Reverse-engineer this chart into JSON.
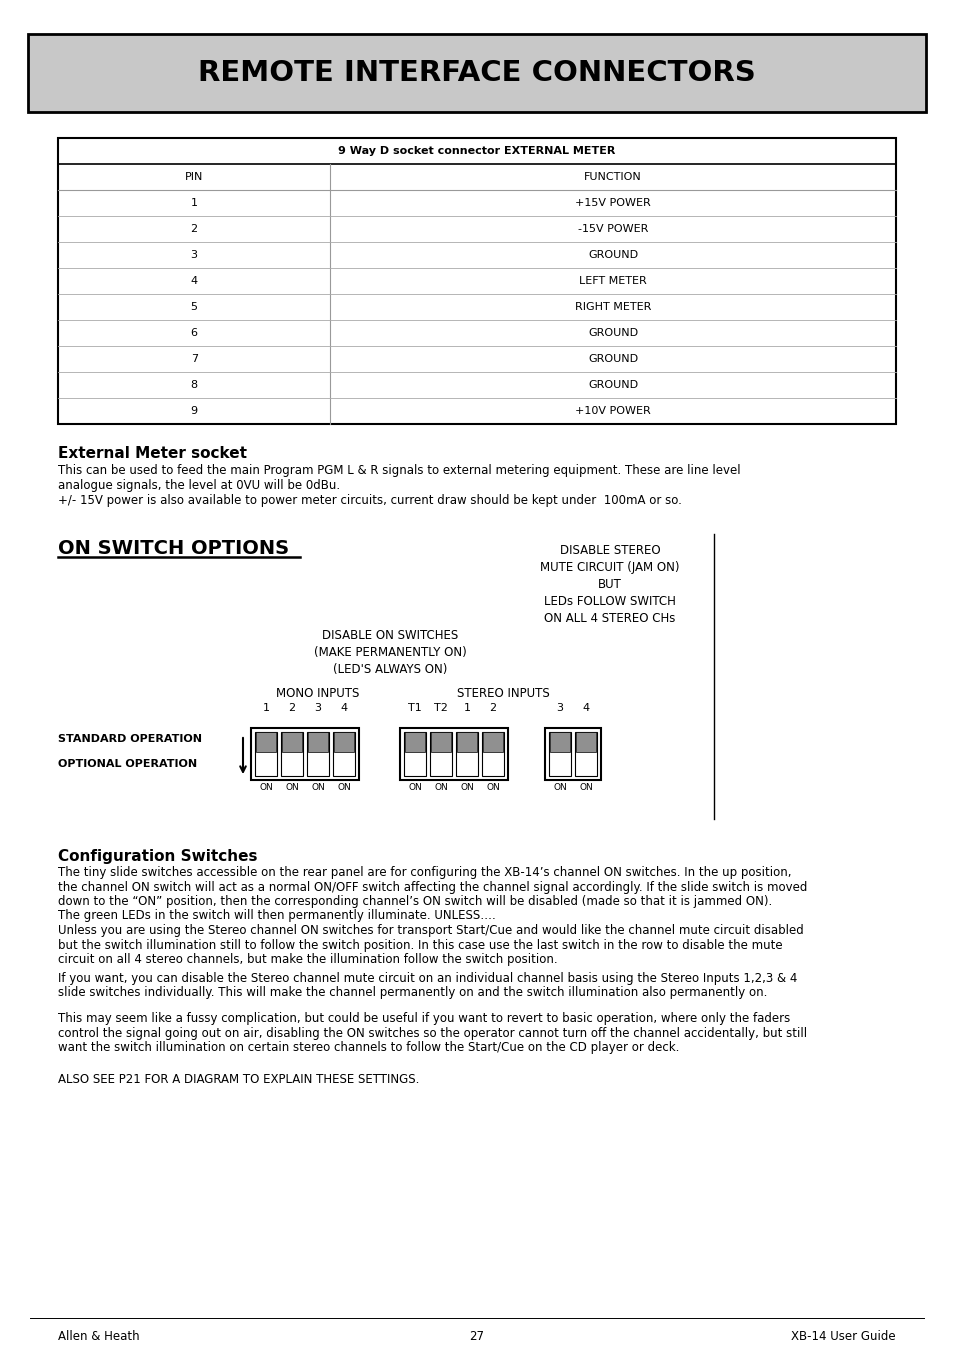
{
  "title": "REMOTE INTERFACE CONNECTORS",
  "title_bg": "#c0c0c0",
  "table_title": "9 Way D socket connector EXTERNAL METER",
  "table_headers": [
    "PIN",
    "FUNCTION"
  ],
  "table_rows": [
    [
      "1",
      "+15V POWER"
    ],
    [
      "2",
      "-15V POWER"
    ],
    [
      "3",
      "GROUND"
    ],
    [
      "4",
      "LEFT METER"
    ],
    [
      "5",
      "RIGHT METER"
    ],
    [
      "6",
      "GROUND"
    ],
    [
      "7",
      "GROUND"
    ],
    [
      "8",
      "GROUND"
    ],
    [
      "9",
      "+10V POWER"
    ]
  ],
  "ext_meter_title": "External Meter socket",
  "ext_meter_text1": "This can be used to feed the main Program PGM L & R signals to external metering equipment. These are line level",
  "ext_meter_text2": "analogue signals, the level at 0VU will be 0dBu.",
  "ext_meter_text3": "+/- 15V power is also available to power meter circuits, current draw should be kept under  100mA or so.",
  "on_switch_title": "ON SWITCH OPTIONS",
  "config_title": "Configuration Switches",
  "config_text1": "The tiny slide switches accessible on the rear panel are for configuring the XB-14’s channel ON switches. In the up position,",
  "config_text2": "the channel ON switch will act as a normal ON/OFF switch affecting the channel signal accordingly. If the slide switch is moved",
  "config_text3": "down to the “ON” position, then the corresponding channel’s ON switch will be disabled (made so that it is jammed ON).",
  "config_text4": "The green LEDs in the switch will then permanently illuminate. UNLESS….",
  "config_text5": "Unless you are using the Stereo channel ON switches for transport Start/Cue and would like the channel mute circuit disabled",
  "config_text6": "but the switch illumination still to follow the switch position. In this case use the last switch in the row to disable the mute",
  "config_text7": "circuit on all 4 stereo channels, but make the illumination follow the switch position.",
  "config_text8": "If you want, you can disable the Stereo channel mute circuit on an individual channel basis using the Stereo Inputs 1,2,3 & 4",
  "config_text9": "slide switches individually. This will make the channel permanently on and the switch illumination also permanently on.",
  "config_text10": "This may seem like a fussy complication, but could be useful if you want to revert to basic operation, where only the faders",
  "config_text11": "control the signal going out on air, disabling the ON switches so the operator cannot turn off the channel accidentally, but still",
  "config_text12": "want the switch illumination on certain stereo channels to follow the Start/Cue on the CD player or deck.",
  "also_see": "ALSO SEE P21 FOR A DIAGRAM TO EXPLAIN THESE SETTINGS.",
  "footer_left": "Allen & Heath",
  "footer_center": "27",
  "footer_right": "XB-14 User Guide"
}
